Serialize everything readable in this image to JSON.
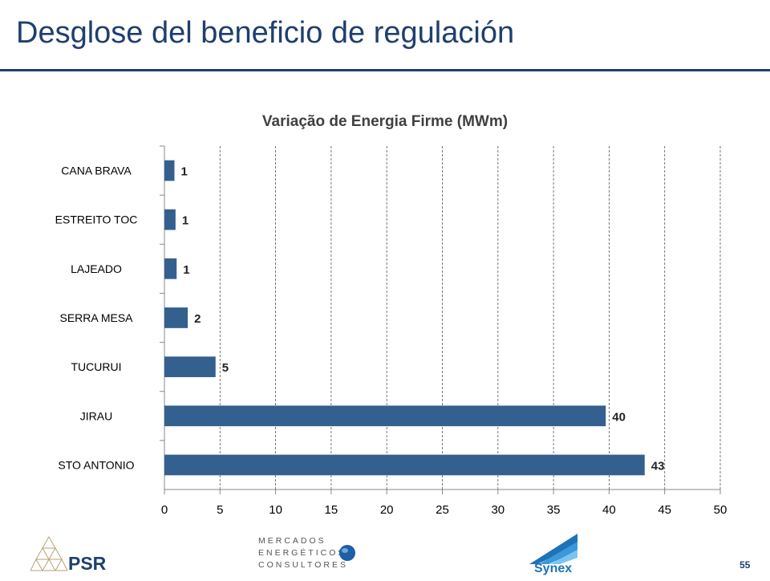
{
  "slide": {
    "title": "Desglose del beneficio de regulación",
    "page_number": "55"
  },
  "logos": {
    "psr": "PSR",
    "mercados_line1": "MERCADOS",
    "mercados_line2": "ENERGÉTICOS",
    "mercados_line3": "CONSULTORES",
    "synex": "Synex"
  },
  "colors": {
    "bar": "#34608f",
    "title": "#1f3f6e"
  },
  "chart_data": {
    "type": "bar",
    "orientation": "horizontal",
    "title": "Variação de Energia Firme (MWm)",
    "categories": [
      "CANA BRAVA",
      "ESTREITO TOC",
      "LAJEADO",
      "SERRA MESA",
      "TUCURUI",
      "JIRAU",
      "STO ANTONIO"
    ],
    "values": [
      0.9,
      1.0,
      1.1,
      2.1,
      4.6,
      39.7,
      43.2
    ],
    "data_labels": [
      "1",
      "1",
      "1",
      "2",
      "5",
      "40",
      "43"
    ],
    "xlim": [
      0,
      50
    ],
    "xticks": [
      "0",
      "5",
      "10",
      "15",
      "20",
      "25",
      "30",
      "35",
      "40",
      "45",
      "50"
    ],
    "xlabel": "",
    "ylabel": "",
    "grid": "vertical dashed"
  }
}
